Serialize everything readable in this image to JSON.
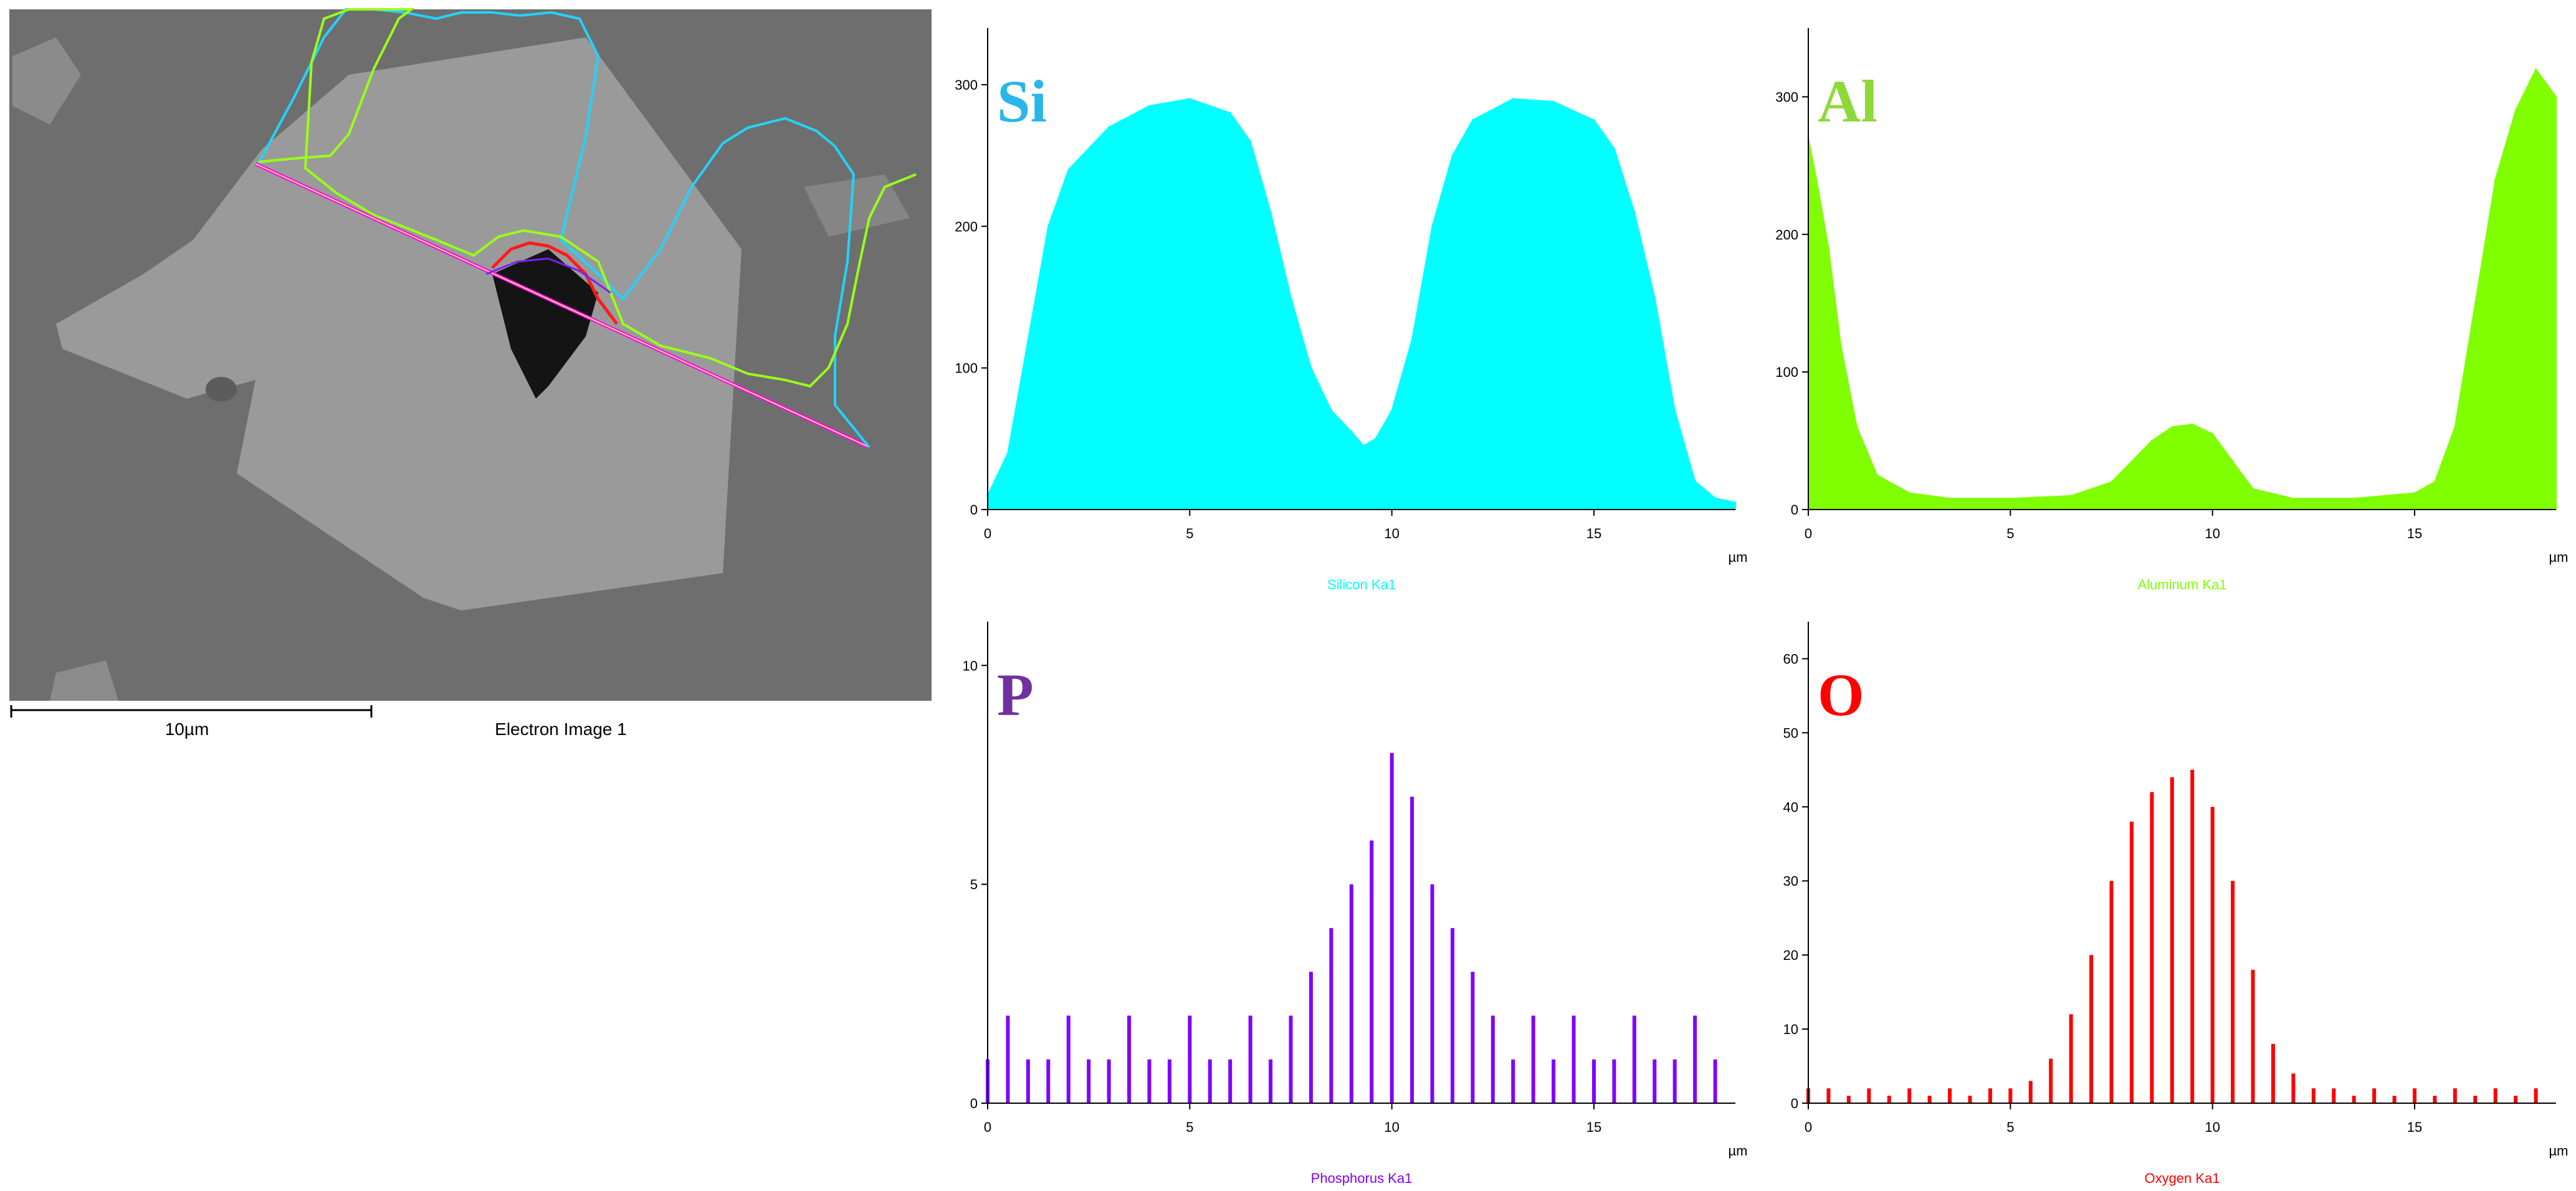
{
  "image": {
    "caption": "Electron Image 1",
    "scalebar_label": "10µm"
  },
  "chart_data": [
    {
      "type": "area",
      "element": "Si",
      "title": "Silicon Ka1",
      "xlabel": "µm",
      "color": "#00ffff",
      "label_color": "#29b6e8",
      "xlim": [
        0,
        18.5
      ],
      "ylim": [
        0,
        340
      ],
      "xticks": [
        0,
        5,
        10,
        15
      ],
      "yticks": [
        0,
        100,
        200,
        300
      ],
      "x": [
        0,
        0.5,
        1,
        1.5,
        2,
        3,
        4,
        5,
        6,
        6.5,
        7,
        7.5,
        8,
        8.5,
        9,
        9.3,
        9.6,
        10,
        10.5,
        11,
        11.5,
        12,
        13,
        14,
        15,
        15.5,
        16,
        16.5,
        17,
        17.5,
        18,
        18.5
      ],
      "values": [
        10,
        40,
        120,
        200,
        240,
        270,
        285,
        290,
        280,
        260,
        210,
        150,
        100,
        70,
        55,
        45,
        50,
        70,
        120,
        200,
        250,
        275,
        290,
        288,
        275,
        255,
        210,
        150,
        70,
        20,
        8,
        5
      ]
    },
    {
      "type": "area",
      "element": "Al",
      "title": "Aluminum Ka1",
      "xlabel": "µm",
      "color": "#7fff00",
      "label_color": "#8fd83a",
      "xlim": [
        0,
        18.5
      ],
      "ylim": [
        0,
        350
      ],
      "xticks": [
        0,
        5,
        10,
        15
      ],
      "yticks": [
        0,
        100,
        200,
        300
      ],
      "x": [
        0,
        0.2,
        0.5,
        0.8,
        1.2,
        1.7,
        2.5,
        3.5,
        5,
        6.5,
        7.5,
        8,
        8.5,
        9,
        9.5,
        10,
        10.5,
        11,
        12,
        13.5,
        15,
        15.5,
        16,
        16.5,
        17,
        17.5,
        18,
        18.5
      ],
      "values": [
        270,
        240,
        190,
        120,
        60,
        25,
        12,
        8,
        8,
        10,
        20,
        35,
        50,
        60,
        62,
        55,
        35,
        15,
        8,
        8,
        12,
        20,
        60,
        150,
        240,
        290,
        320,
        300
      ]
    },
    {
      "type": "bar",
      "element": "P",
      "title": "Phosphorus Ka1",
      "xlabel": "µm",
      "color": "#8000ff",
      "label_color": "#7030a0",
      "xlim": [
        0,
        18.5
      ],
      "ylim": [
        0,
        11
      ],
      "xticks": [
        0,
        5,
        10,
        15
      ],
      "yticks": [
        0,
        5,
        10
      ],
      "x": [
        0,
        0.5,
        1,
        1.5,
        2,
        2.5,
        3,
        3.5,
        4,
        4.5,
        5,
        5.5,
        6,
        6.5,
        7,
        7.5,
        8,
        8.5,
        9,
        9.5,
        10,
        10.5,
        11,
        11.5,
        12,
        12.5,
        13,
        13.5,
        14,
        14.5,
        15,
        15.5,
        16,
        16.5,
        17,
        17.5,
        18
      ],
      "values": [
        1,
        2,
        1,
        1,
        2,
        1,
        1,
        2,
        1,
        1,
        2,
        1,
        1,
        2,
        1,
        2,
        3,
        4,
        5,
        6,
        8,
        7,
        5,
        4,
        3,
        2,
        1,
        2,
        1,
        2,
        1,
        1,
        2,
        1,
        1,
        2,
        1
      ]
    },
    {
      "type": "bar",
      "element": "O",
      "title": "Oxygen Ka1",
      "xlabel": "µm",
      "color": "#ff0000",
      "label_color": "#ff0000",
      "xlim": [
        0,
        18.5
      ],
      "ylim": [
        0,
        65
      ],
      "xticks": [
        0,
        5,
        10,
        15
      ],
      "yticks": [
        0,
        10,
        20,
        30,
        40,
        50,
        60
      ],
      "x": [
        0,
        0.5,
        1,
        1.5,
        2,
        2.5,
        3,
        3.5,
        4,
        4.5,
        5,
        5.5,
        6,
        6.5,
        7,
        7.5,
        8,
        8.5,
        9,
        9.5,
        10,
        10.5,
        11,
        11.5,
        12,
        12.5,
        13,
        13.5,
        14,
        14.5,
        15,
        15.5,
        16,
        16.5,
        17,
        17.5,
        18
      ],
      "values": [
        2,
        2,
        1,
        2,
        1,
        2,
        1,
        2,
        1,
        2,
        2,
        3,
        6,
        12,
        20,
        30,
        38,
        42,
        44,
        45,
        40,
        30,
        18,
        8,
        4,
        2,
        2,
        1,
        2,
        1,
        2,
        1,
        2,
        1,
        2,
        1,
        2
      ]
    }
  ]
}
